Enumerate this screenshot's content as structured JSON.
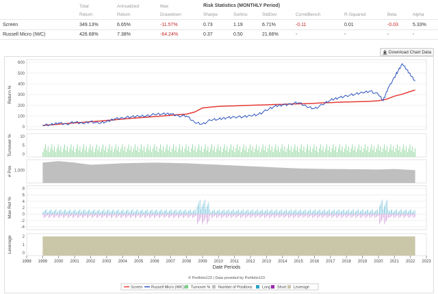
{
  "stats": {
    "headers": {
      "total": [
        "Total",
        "Return"
      ],
      "annualized": [
        "Annualized",
        "Return"
      ],
      "max": [
        "Max",
        "Drawdown"
      ],
      "risk_title": "Risk Statistics (MONTHLY Period)",
      "sharpe": "Sharpe",
      "sortino": "Sortino",
      "stddev": "StdDev",
      "correl": "CorrelBench",
      "rsq": "R-Squared",
      "beta": "Beta",
      "alpha": "Alpha"
    },
    "rows": [
      {
        "name": "Screen",
        "total": "349.13%",
        "annualized": "6.65%",
        "drawdown": "-11.57%",
        "sharpe": "0.73",
        "sortino": "1.19",
        "stddev": "6.71%",
        "correl": "-0.11",
        "rsq": "0.01",
        "beta": "-0.03",
        "alpha": "5.33%"
      },
      {
        "name": "Russell Micro (IWC)",
        "total": "426.68%",
        "annualized": "7.38%",
        "drawdown": "-64.24%",
        "sharpe": "0.37",
        "sortino": "0.50",
        "stddev": "21.66%",
        "correl": "-",
        "rsq": "-",
        "beta": "-",
        "alpha": "-"
      }
    ]
  },
  "download_label": "Download Chart Data",
  "colors": {
    "screen": "#2a52be",
    "benchmark": "#e53935",
    "turnover": "#7ccf8c",
    "positions": "#bfbfbf",
    "long": "#29a3c8",
    "short": "#9c27b0",
    "leverage": "#c9c7a8",
    "negative": "#c62828"
  },
  "chart_data": [
    {
      "type": "line",
      "ylabel": "Return %",
      "y_ticks": [
        "600",
        "500",
        "400",
        "300",
        "200",
        "100",
        "0"
      ],
      "ylim": [
        -40,
        640
      ],
      "xlim": [
        1998,
        2023
      ],
      "series": [
        {
          "name": "Screen",
          "x": [
            1999.0,
            1999.5,
            2000.0,
            2000.5,
            2001.0,
            2001.5,
            2002.0,
            2002.5,
            2003.0,
            2003.5,
            2004.0,
            2004.5,
            2005.0,
            2005.5,
            2006.0,
            2006.5,
            2007.0,
            2007.5,
            2008.0,
            2008.5,
            2009.0,
            2009.5,
            2010.0,
            2010.5,
            2011.0,
            2011.5,
            2012.0,
            2012.5,
            2013.0,
            2013.5,
            2014.0,
            2014.5,
            2015.0,
            2015.5,
            2016.0,
            2016.5,
            2017.0,
            2017.5,
            2018.0,
            2018.5,
            2019.0,
            2019.5,
            2020.0,
            2020.5,
            2021.0,
            2021.5,
            2022.0,
            2022.3
          ],
          "values": [
            0,
            6,
            12,
            18,
            25,
            30,
            36,
            42,
            48,
            55,
            62,
            68,
            74,
            80,
            86,
            92,
            98,
            105,
            110,
            130,
            170,
            178,
            185,
            188,
            190,
            193,
            196,
            198,
            200,
            203,
            205,
            208,
            210,
            212,
            215,
            220,
            222,
            226,
            228,
            230,
            232,
            235,
            240,
            255,
            285,
            305,
            330,
            345
          ]
        },
        {
          "name": "Russell Micro (IWC)",
          "x": [
            1999.0,
            1999.5,
            2000.0,
            2000.5,
            2001.0,
            2001.5,
            2002.0,
            2002.5,
            2003.0,
            2003.5,
            2004.0,
            2004.5,
            2005.0,
            2005.5,
            2006.0,
            2006.5,
            2007.0,
            2007.5,
            2008.0,
            2008.5,
            2009.0,
            2009.5,
            2010.0,
            2010.5,
            2011.0,
            2011.5,
            2012.0,
            2012.5,
            2013.0,
            2013.5,
            2014.0,
            2014.5,
            2015.0,
            2015.5,
            2016.0,
            2016.5,
            2017.0,
            2017.5,
            2018.0,
            2018.5,
            2019.0,
            2019.5,
            2020.0,
            2020.3,
            2020.6,
            2021.0,
            2021.2,
            2021.5,
            2021.8,
            2022.0,
            2022.3
          ],
          "values": [
            0,
            5,
            25,
            15,
            30,
            20,
            40,
            20,
            35,
            65,
            75,
            80,
            90,
            95,
            105,
            110,
            115,
            95,
            90,
            30,
            15,
            50,
            60,
            75,
            85,
            80,
            95,
            110,
            145,
            185,
            200,
            210,
            220,
            185,
            165,
            200,
            245,
            270,
            290,
            300,
            320,
            335,
            300,
            240,
            360,
            470,
            520,
            600,
            540,
            490,
            430
          ]
        }
      ]
    },
    {
      "type": "bar",
      "ylabel": "Turnover %",
      "y_ticks": [
        "10",
        "5",
        "0"
      ],
      "ylim": [
        0,
        10
      ],
      "note": "dense small bars across 1999-2022"
    },
    {
      "type": "area",
      "ylabel": "# Pos",
      "y_ticks": [
        "1,000"
      ],
      "series": [
        {
          "name": "Number of Positions",
          "x": [
            1999.0,
            2000.0,
            2001.0,
            2002.0,
            2003.0,
            2004.0,
            2005.0,
            2006.0,
            2007.0,
            2008.0,
            2009.0,
            2010.0,
            2011.0,
            2012.0,
            2013.0,
            2014.0,
            2015.0,
            2016.0,
            2017.0,
            2018.0,
            2019.0,
            2020.0,
            2021.0,
            2022.0,
            2022.3
          ],
          "values": [
            1400,
            1500,
            1400,
            1250,
            1300,
            1350,
            1380,
            1400,
            1380,
            1350,
            1300,
            1250,
            1200,
            1150,
            1100,
            1050,
            1000,
            980,
            960,
            950,
            940,
            920,
            960,
            900,
            880
          ]
        }
      ]
    },
    {
      "type": "bar",
      "ylabel": "Max Ret %",
      "y_ticks": [
        "8",
        "6",
        "4",
        "2",
        "0",
        "-2",
        "-4"
      ],
      "ylim": [
        -4,
        8
      ]
    },
    {
      "type": "area",
      "ylabel": "Leverage",
      "y_ticks": [
        "2",
        "1",
        "0"
      ],
      "ylim": [
        0,
        2
      ],
      "series": [
        {
          "name": "Leverage",
          "x": [
            1999.0,
            2022.3
          ],
          "values": [
            2,
            2
          ]
        }
      ]
    }
  ],
  "x_ticks": [
    "1998",
    "1999",
    "2000",
    "2001",
    "2002",
    "2003",
    "2004",
    "2005",
    "2006",
    "2007",
    "2008",
    "2009",
    "2010",
    "2011",
    "2012",
    "2013",
    "2014",
    "2015",
    "2016",
    "2017",
    "2018",
    "2019",
    "2020",
    "2021",
    "2022",
    "2023"
  ],
  "xlabel": "Date Periods",
  "credit": "Portfolio123 | Data provided by Portfolio123",
  "legend": [
    "Screen",
    "Russell Micro (IWC)",
    "Turnover %",
    "Number of Positions",
    "Long",
    "Short",
    "Leverage"
  ]
}
